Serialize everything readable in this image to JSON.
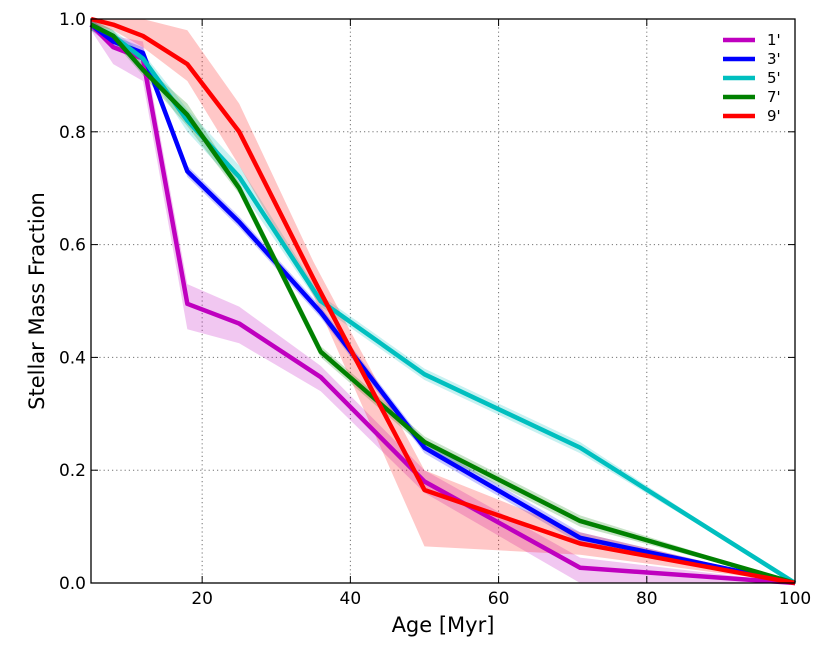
{
  "chart_data": {
    "type": "line",
    "title": "",
    "xlabel": "Age [Myr]",
    "ylabel": "Stellar Mass Fraction",
    "xlim": [
      5,
      100
    ],
    "ylim": [
      0.0,
      1.0
    ],
    "x_ticks": [
      20,
      40,
      60,
      80,
      100
    ],
    "x_tick_labels": [
      "20",
      "40",
      "60",
      "80",
      "100"
    ],
    "y_ticks": [
      0.0,
      0.2,
      0.4,
      0.6,
      0.8,
      1.0
    ],
    "y_tick_labels": [
      "0.0",
      "0.2",
      "0.4",
      "0.6",
      "0.8",
      "1.0"
    ],
    "grid": true,
    "legend_position": "top-right",
    "series": [
      {
        "name": "1'",
        "color": "#bf00bf",
        "x": [
          5,
          8,
          12,
          18,
          25,
          36,
          50,
          71,
          100
        ],
        "y": [
          0.99,
          0.95,
          0.93,
          0.495,
          0.46,
          0.365,
          0.18,
          0.027,
          0.0
        ],
        "band_low": [
          0.98,
          0.92,
          0.89,
          0.45,
          0.425,
          0.34,
          0.16,
          0.0,
          0.0
        ],
        "band_high": [
          1.0,
          0.97,
          0.96,
          0.53,
          0.49,
          0.385,
          0.2,
          0.045,
          0.0
        ]
      },
      {
        "name": "3'",
        "color": "#0000ff",
        "x": [
          5,
          8,
          12,
          18,
          25,
          36,
          50,
          71,
          100
        ],
        "y": [
          0.99,
          0.96,
          0.94,
          0.73,
          0.64,
          0.48,
          0.24,
          0.08,
          0.0
        ],
        "band_low": [
          0.98,
          0.95,
          0.93,
          0.72,
          0.63,
          0.47,
          0.23,
          0.07,
          0.0
        ],
        "band_high": [
          1.0,
          0.97,
          0.95,
          0.74,
          0.65,
          0.49,
          0.25,
          0.09,
          0.0
        ]
      },
      {
        "name": "5'",
        "color": "#00bfbf",
        "x": [
          5,
          8,
          12,
          18,
          25,
          36,
          50,
          71,
          100
        ],
        "y": [
          0.99,
          0.97,
          0.93,
          0.82,
          0.72,
          0.5,
          0.37,
          0.24,
          0.0
        ],
        "band_low": [
          0.98,
          0.96,
          0.92,
          0.8,
          0.7,
          0.49,
          0.36,
          0.23,
          0.0
        ],
        "band_high": [
          1.0,
          0.98,
          0.94,
          0.84,
          0.74,
          0.51,
          0.38,
          0.25,
          0.0
        ]
      },
      {
        "name": "7'",
        "color": "#008000",
        "x": [
          5,
          8,
          12,
          18,
          25,
          36,
          50,
          71,
          100
        ],
        "y": [
          0.99,
          0.97,
          0.91,
          0.83,
          0.7,
          0.41,
          0.25,
          0.11,
          0.0
        ],
        "band_low": [
          0.98,
          0.96,
          0.9,
          0.81,
          0.69,
          0.4,
          0.24,
          0.1,
          0.0
        ],
        "band_high": [
          1.0,
          0.98,
          0.92,
          0.85,
          0.71,
          0.42,
          0.26,
          0.12,
          0.0
        ]
      },
      {
        "name": "9'",
        "color": "#ff0000",
        "x": [
          5,
          8,
          12,
          18,
          25,
          35,
          50,
          71,
          100
        ],
        "y": [
          1.0,
          0.99,
          0.97,
          0.92,
          0.8,
          0.54,
          0.165,
          0.07,
          0.0
        ],
        "band_low": [
          0.99,
          0.98,
          0.95,
          0.89,
          0.74,
          0.51,
          0.065,
          0.05,
          0.0
        ],
        "band_high": [
          1.0,
          1.0,
          1.0,
          0.98,
          0.85,
          0.57,
          0.2,
          0.09,
          0.0
        ]
      }
    ]
  }
}
